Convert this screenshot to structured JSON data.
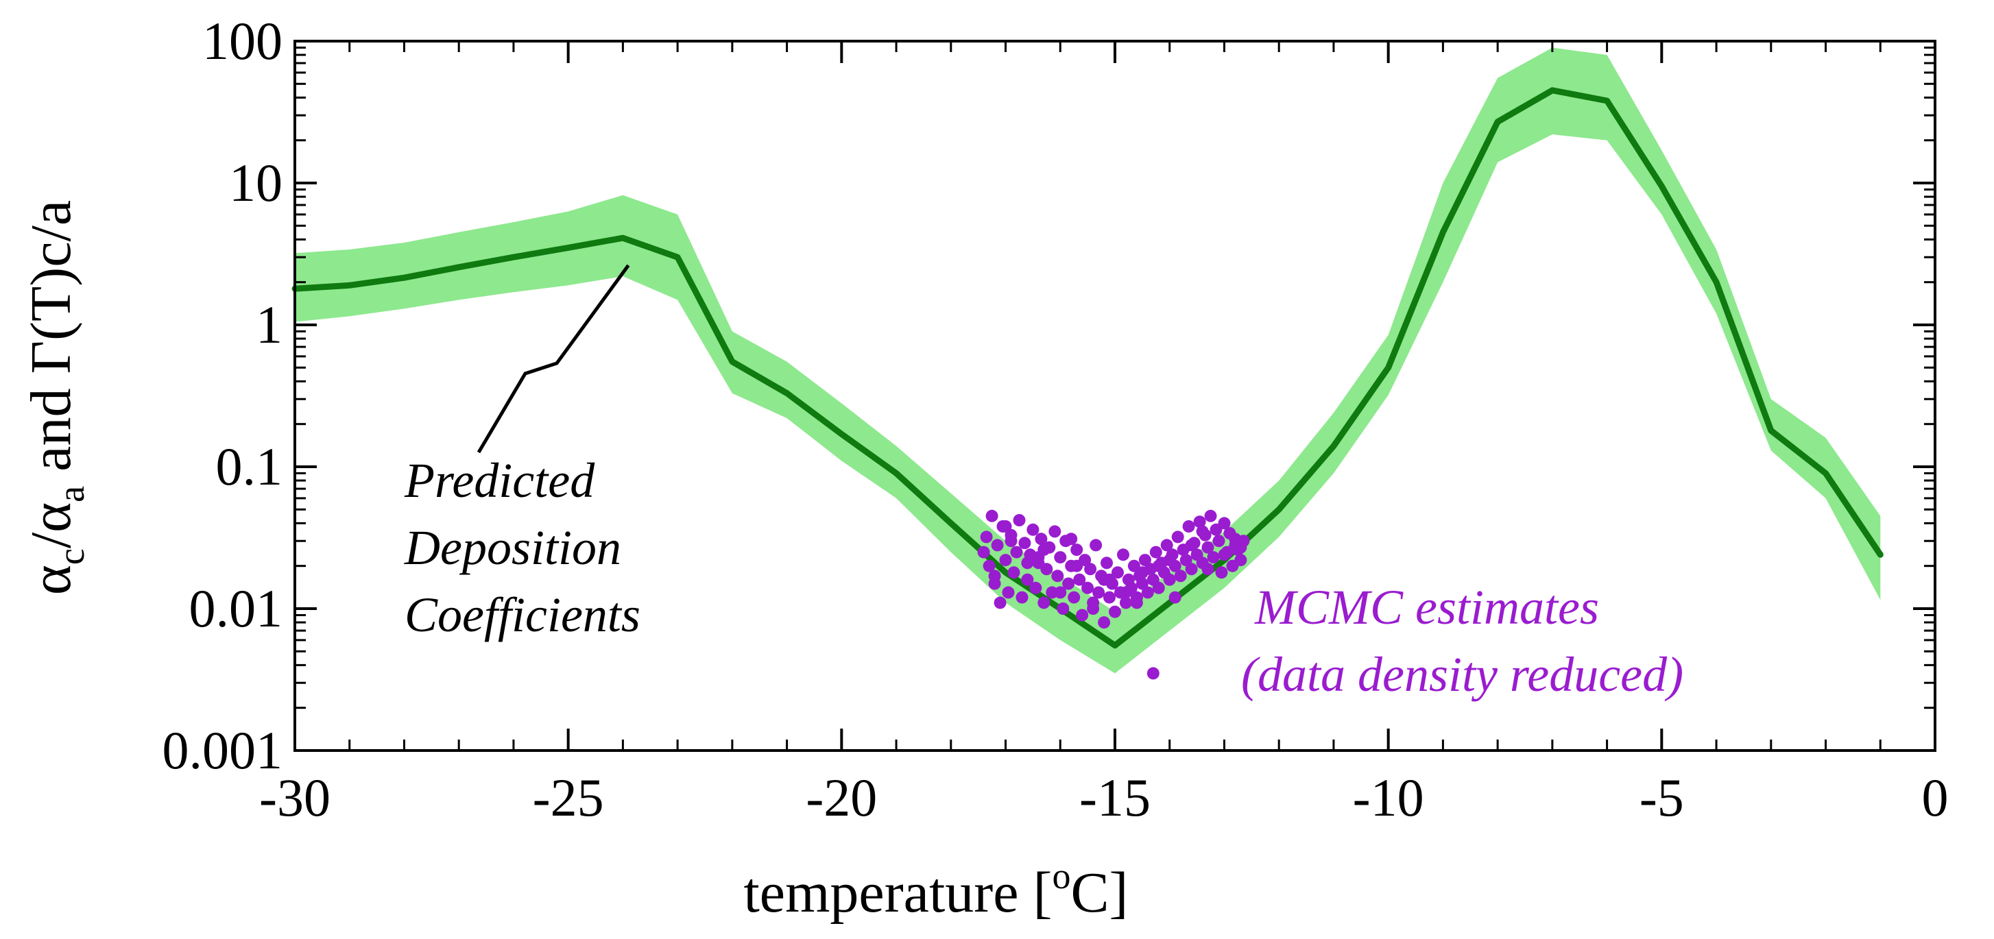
{
  "chart_data": {
    "type": "line",
    "xlabel": {
      "prefix": "temperature [",
      "superscript": "o",
      "suffix": "C]"
    },
    "ylabel": {
      "alpha1": "α",
      "sub1": "c",
      "slash": "/",
      "alpha2": "α",
      "sub2": "a",
      "rest": " and Γ(T)c/a"
    },
    "xlim": [
      -30,
      0
    ],
    "ylim": [
      0.001,
      100
    ],
    "y_scale": "log",
    "grid": false,
    "x_ticks": [
      -30,
      -25,
      -20,
      -15,
      -10,
      -5,
      0
    ],
    "x_tick_labels": [
      "-30",
      "-25",
      "-20",
      "-15",
      "-10",
      "-5",
      "0"
    ],
    "y_ticks": [
      0.001,
      0.01,
      0.1,
      1,
      10,
      100
    ],
    "y_tick_labels": [
      "0.001",
      "0.01",
      "0.1",
      "1",
      "10",
      "100"
    ],
    "colors": {
      "line": "#0f7a0f",
      "band": "#8ee88e",
      "points": "#9a1ccf",
      "annotation_points": "#9a1ccf",
      "annotation_line": "#000000"
    },
    "series": [
      {
        "kind": "line",
        "x": [
          -30,
          -29,
          -28,
          -27,
          -26,
          -25,
          -24,
          -23,
          -22,
          -21,
          -20,
          -19,
          -18,
          -17,
          -16,
          -15,
          -14,
          -13,
          -12,
          -11,
          -10,
          -9,
          -8,
          -7,
          -6,
          -5,
          -4,
          -3,
          -2,
          -1
        ],
        "y": [
          1.8,
          1.9,
          2.15,
          2.55,
          3.0,
          3.5,
          4.1,
          3.0,
          0.55,
          0.33,
          0.17,
          0.09,
          0.04,
          0.018,
          0.01,
          0.0055,
          0.011,
          0.022,
          0.05,
          0.14,
          0.5,
          4.5,
          27,
          45,
          38,
          9.5,
          2.0,
          0.18,
          0.09,
          0.024
        ]
      },
      {
        "kind": "band",
        "x": [
          -30,
          -29,
          -28,
          -27,
          -26,
          -25,
          -24,
          -23,
          -22,
          -21,
          -20,
          -19,
          -18,
          -17,
          -16,
          -15,
          -14,
          -13,
          -12,
          -11,
          -10,
          -9,
          -8,
          -7,
          -6,
          -5,
          -4,
          -3,
          -2,
          -1
        ],
        "lower": [
          1.05,
          1.15,
          1.3,
          1.5,
          1.7,
          1.9,
          2.2,
          1.5,
          0.33,
          0.22,
          0.11,
          0.06,
          0.025,
          0.011,
          0.006,
          0.0035,
          0.007,
          0.014,
          0.032,
          0.09,
          0.32,
          2.0,
          14,
          22,
          20,
          6.0,
          1.2,
          0.13,
          0.06,
          0.0115
        ],
        "upper": [
          3.2,
          3.4,
          3.8,
          4.5,
          5.3,
          6.3,
          8.2,
          6.0,
          0.9,
          0.55,
          0.28,
          0.14,
          0.065,
          0.03,
          0.017,
          0.0095,
          0.018,
          0.035,
          0.08,
          0.24,
          0.85,
          10,
          55,
          90,
          80,
          17,
          3.4,
          0.3,
          0.16,
          0.045
        ]
      },
      {
        "kind": "scatter",
        "x": [
          -17.35,
          -17.3,
          -17.25,
          -17.2,
          -17.15,
          -17.1,
          -17.05,
          -17.0,
          -16.95,
          -16.9,
          -16.85,
          -16.8,
          -16.75,
          -16.7,
          -16.65,
          -16.6,
          -16.55,
          -16.5,
          -16.45,
          -16.4,
          -16.35,
          -16.3,
          -16.25,
          -16.2,
          -16.15,
          -16.1,
          -16.05,
          -16.0,
          -15.95,
          -15.9,
          -15.85,
          -15.8,
          -15.75,
          -15.7,
          -15.65,
          -15.6,
          -15.55,
          -15.5,
          -15.45,
          -15.4,
          -15.35,
          -15.3,
          -15.25,
          -15.2,
          -15.15,
          -15.1,
          -15.05,
          -15.0,
          -14.95,
          -14.9,
          -14.85,
          -14.8,
          -14.75,
          -14.7,
          -14.65,
          -14.6,
          -14.55,
          -14.5,
          -14.45,
          -14.4,
          -14.35,
          -14.3,
          -14.25,
          -14.2,
          -14.15,
          -14.1,
          -14.05,
          -14.0,
          -13.95,
          -13.9,
          -13.85,
          -13.8,
          -13.75,
          -13.7,
          -13.65,
          -13.6,
          -13.55,
          -13.5,
          -13.45,
          -13.4,
          -13.35,
          -13.3,
          -13.25,
          -13.2,
          -13.15,
          -13.1,
          -13.05,
          -13.0,
          -12.95,
          -12.9,
          -12.85,
          -12.8,
          -12.75,
          -12.7,
          -12.65,
          -17.4,
          -17.2,
          -16.9,
          -16.6,
          -16.3,
          -16.0,
          -15.7,
          -15.4,
          -15.1,
          -14.8,
          -14.5,
          -14.2,
          -13.9,
          -13.6,
          -13.3,
          -13.0,
          -12.7,
          -17.0,
          -16.4,
          -15.8,
          -15.2,
          -14.6,
          -14.0,
          -13.4,
          -12.8,
          -14.3
        ],
        "y": [
          0.032,
          0.02,
          0.045,
          0.015,
          0.028,
          0.011,
          0.038,
          0.022,
          0.013,
          0.033,
          0.018,
          0.025,
          0.042,
          0.012,
          0.029,
          0.016,
          0.024,
          0.036,
          0.014,
          0.021,
          0.031,
          0.011,
          0.019,
          0.027,
          0.013,
          0.035,
          0.017,
          0.023,
          0.01,
          0.03,
          0.015,
          0.02,
          0.012,
          0.026,
          0.016,
          0.009,
          0.022,
          0.014,
          0.019,
          0.011,
          0.028,
          0.013,
          0.017,
          0.008,
          0.021,
          0.012,
          0.015,
          0.0095,
          0.018,
          0.013,
          0.024,
          0.011,
          0.016,
          0.014,
          0.02,
          0.012,
          0.017,
          0.015,
          0.022,
          0.013,
          0.019,
          0.016,
          0.025,
          0.014,
          0.021,
          0.018,
          0.028,
          0.016,
          0.024,
          0.02,
          0.032,
          0.017,
          0.026,
          0.022,
          0.038,
          0.019,
          0.029,
          0.024,
          0.041,
          0.021,
          0.033,
          0.027,
          0.045,
          0.023,
          0.036,
          0.03,
          0.018,
          0.04,
          0.025,
          0.034,
          0.02,
          0.031,
          0.026,
          0.022,
          0.03,
          0.025,
          0.017,
          0.03,
          0.021,
          0.026,
          0.013,
          0.02,
          0.01,
          0.016,
          0.013,
          0.018,
          0.02,
          0.012,
          0.028,
          0.019,
          0.024,
          0.027,
          0.038,
          0.023,
          0.031,
          0.016,
          0.011,
          0.022,
          0.035,
          0.028,
          0.0035
        ]
      }
    ],
    "annotations": [
      {
        "id": "predicted",
        "lines": [
          "Predicted",
          "Deposition",
          "Coefficients"
        ]
      },
      {
        "id": "mcmc",
        "lines": [
          "MCMC estimates",
          "(data density reduced)"
        ]
      }
    ]
  }
}
